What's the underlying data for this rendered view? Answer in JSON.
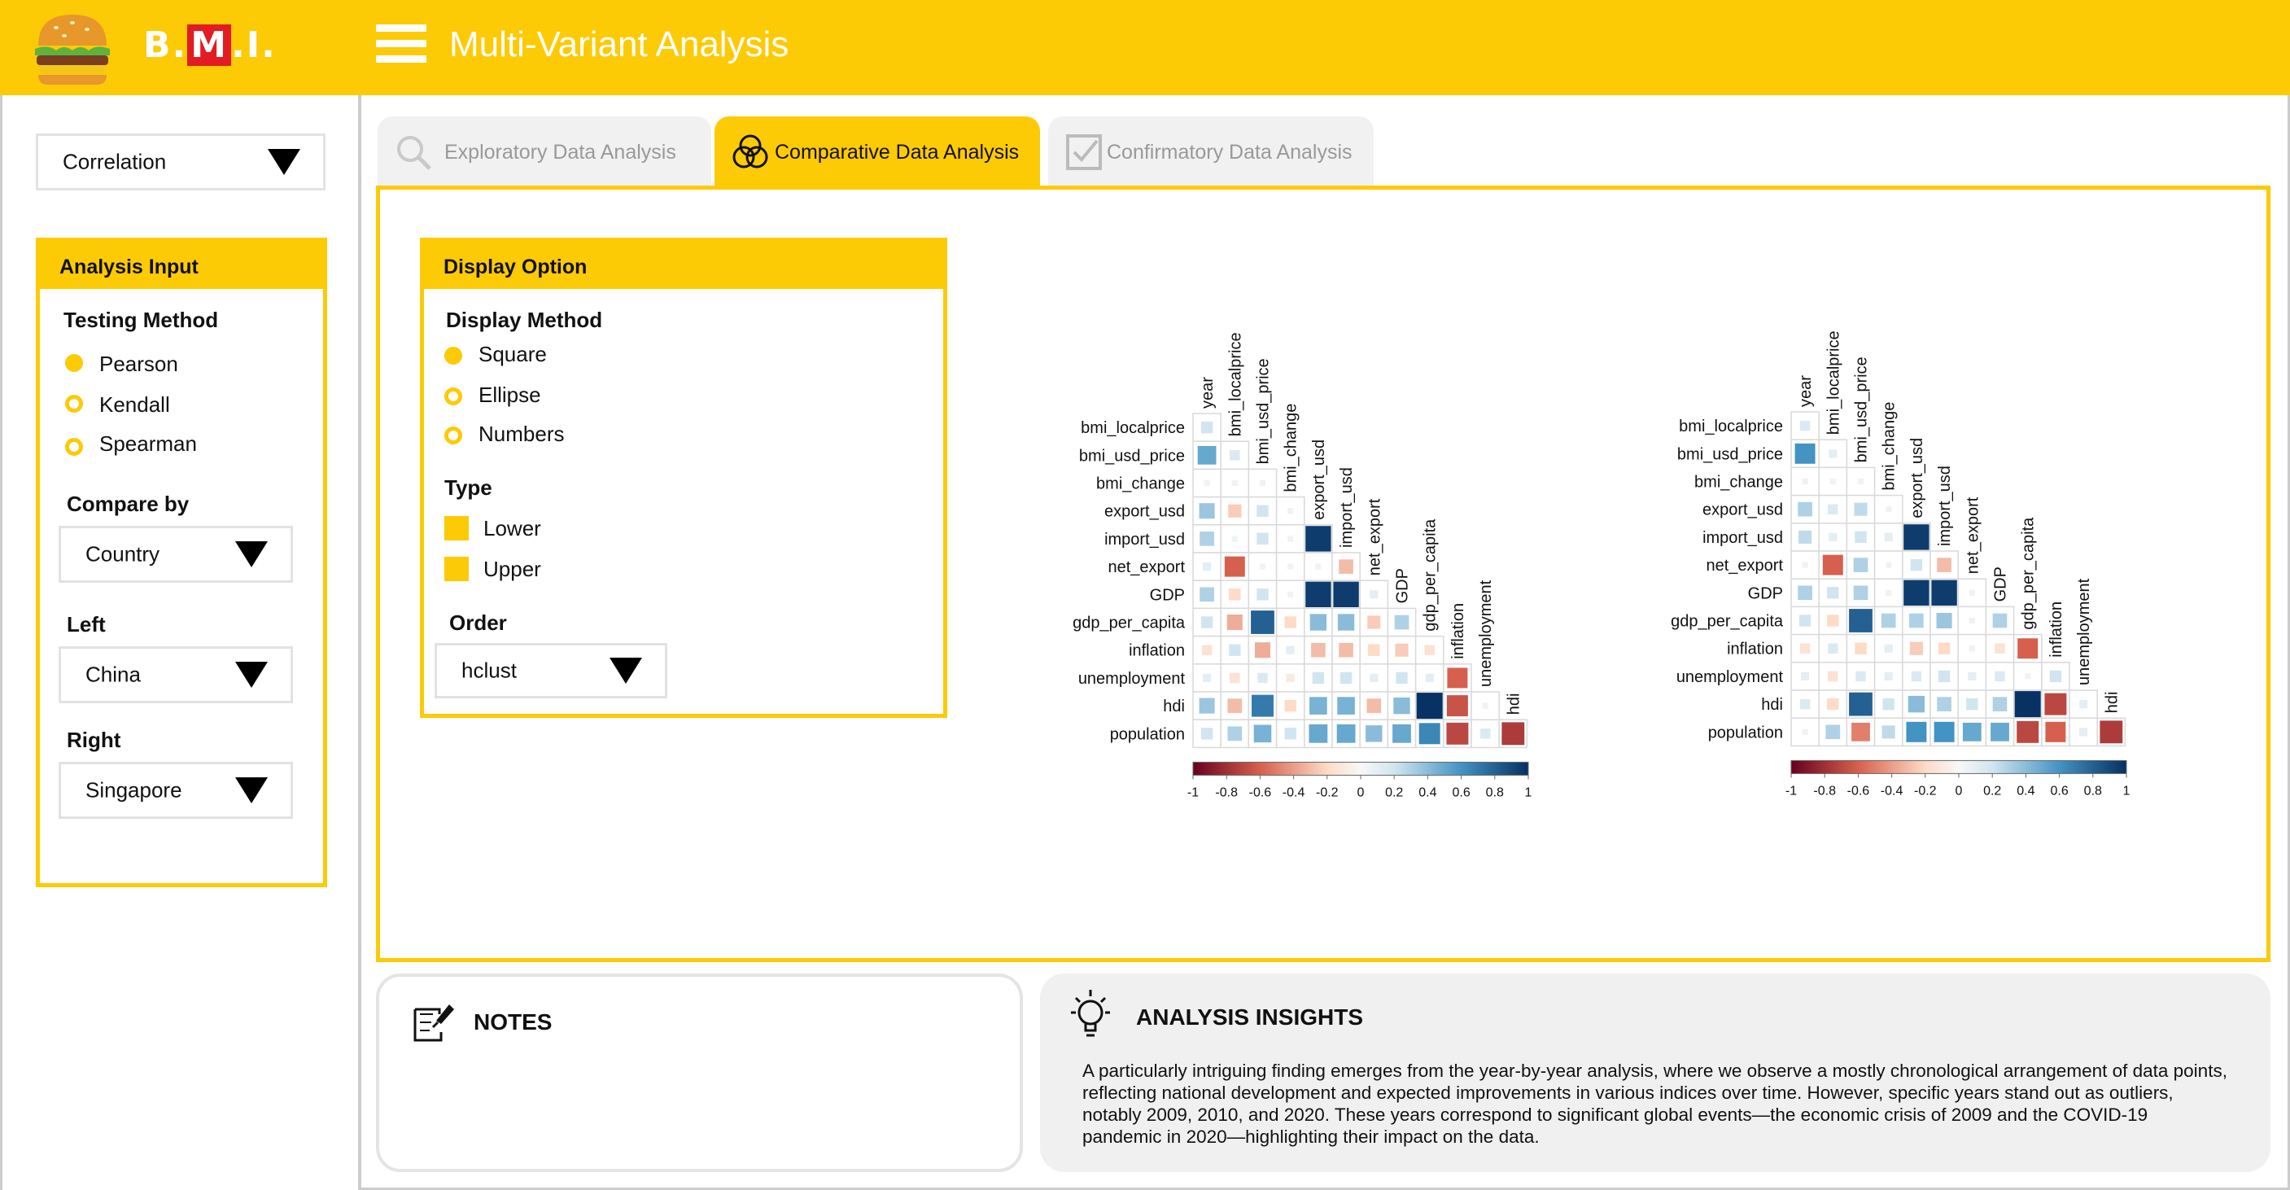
{
  "app": {
    "logo_text_prefix": "B.",
    "logo_text_m": "M",
    "logo_text_suffix": ".I.",
    "page_title": "Multi-Variant Analysis",
    "accent_color": "#FDCA06"
  },
  "sidebar": {
    "analysis_select": "Correlation",
    "panel_title": "Analysis Input",
    "testing_method_label": "Testing Method",
    "methods": [
      "Pearson",
      "Kendall",
      "Spearman"
    ],
    "selected_method": "Pearson",
    "compare_by_label": "Compare by",
    "compare_by_value": "Country",
    "left_label": "Left",
    "left_value": "China",
    "right_label": "Right",
    "right_value": "Singapore"
  },
  "tabs": [
    {
      "label": "Exploratory Data Analysis",
      "icon": "search-icon",
      "active": false
    },
    {
      "label": "Comparative Data Analysis",
      "icon": "venn-icon",
      "active": true
    },
    {
      "label": "Confirmatory Data Analysis",
      "icon": "checkbox-icon",
      "active": false
    }
  ],
  "display_option": {
    "title": "Display Option",
    "display_method_label": "Display Method",
    "methods": [
      "Square",
      "Ellipse",
      "Numbers"
    ],
    "selected_method": "Square",
    "type_label": "Type",
    "types": [
      "Lower",
      "Upper"
    ],
    "order_label": "Order",
    "order_value": "hclust"
  },
  "chart_data": [
    {
      "type": "heatmap",
      "title": "",
      "variables": [
        "year",
        "bmi_localprice",
        "bmi_usd_price",
        "bmi_change",
        "export_usd",
        "import_usd",
        "net_export",
        "GDP",
        "gdp_per_capita",
        "inflation",
        "unemployment",
        "hdi",
        "population"
      ],
      "row_labels": [
        "bmi_localprice",
        "bmi_usd_price",
        "bmi_change",
        "export_usd",
        "import_usd",
        "net_export",
        "GDP",
        "gdp_per_capita",
        "inflation",
        "unemployment",
        "hdi",
        "population"
      ],
      "col_labels": [
        "year",
        "bmi_localprice",
        "bmi_usd_price",
        "bmi_change",
        "export_usd",
        "import_usd",
        "net_export",
        "GDP",
        "gdp_per_capita",
        "inflation",
        "unemployment",
        "hdi"
      ],
      "lower_triangle_values": [
        [
          0.2
        ],
        [
          0.5,
          0.15
        ],
        [
          0.05,
          0.05,
          0.05
        ],
        [
          0.35,
          -0.25,
          0.2,
          0.05
        ],
        [
          0.3,
          0.05,
          0.2,
          0.05,
          0.95
        ],
        [
          0.1,
          -0.6,
          0.05,
          0.05,
          0.05,
          -0.3
        ],
        [
          0.3,
          -0.2,
          0.2,
          0.05,
          0.95,
          0.95,
          0.1
        ],
        [
          0.2,
          -0.35,
          0.8,
          -0.2,
          0.4,
          0.4,
          -0.25,
          0.3
        ],
        [
          -0.15,
          0.2,
          -0.35,
          0.1,
          -0.3,
          -0.3,
          -0.2,
          -0.25,
          -0.15
        ],
        [
          0.1,
          -0.15,
          0.15,
          -0.1,
          0.2,
          0.2,
          0.1,
          0.2,
          0.1,
          -0.6
        ],
        [
          0.35,
          -0.3,
          0.7,
          -0.2,
          0.45,
          0.45,
          -0.3,
          0.4,
          0.99,
          -0.65,
          0.05
        ],
        [
          0.2,
          0.3,
          0.45,
          0.2,
          0.5,
          0.5,
          0.4,
          0.5,
          0.65,
          -0.7,
          0.15,
          -0.75
        ]
      ],
      "legend_ticks": [
        "-1",
        "-0.8",
        "-0.6",
        "-0.4",
        "-0.2",
        "0",
        "0.2",
        "0.4",
        "0.6",
        "0.8",
        "1"
      ],
      "zlim": [
        -1,
        1
      ]
    },
    {
      "type": "heatmap",
      "title": "",
      "variables": [
        "year",
        "bmi_localprice",
        "bmi_usd_price",
        "bmi_change",
        "export_usd",
        "import_usd",
        "net_export",
        "GDP",
        "gdp_per_capita",
        "inflation",
        "unemployment",
        "hdi",
        "population"
      ],
      "row_labels": [
        "bmi_localprice",
        "bmi_usd_price",
        "bmi_change",
        "export_usd",
        "import_usd",
        "net_export",
        "GDP",
        "gdp_per_capita",
        "inflation",
        "unemployment",
        "hdi",
        "population"
      ],
      "col_labels": [
        "year",
        "bmi_localprice",
        "bmi_usd_price",
        "bmi_change",
        "export_usd",
        "import_usd",
        "net_export",
        "GDP",
        "gdp_per_capita",
        "inflation",
        "unemployment",
        "hdi"
      ],
      "lower_triangle_values": [
        [
          0.15
        ],
        [
          0.6,
          0.1
        ],
        [
          0.05,
          0.05,
          0.05
        ],
        [
          0.3,
          0.15,
          0.25,
          0.05
        ],
        [
          0.25,
          0.1,
          0.2,
          0.1,
          0.95
        ],
        [
          0.05,
          -0.6,
          0.3,
          0.05,
          0.2,
          -0.3
        ],
        [
          0.3,
          0.2,
          0.3,
          0.05,
          0.95,
          0.95,
          0.05
        ],
        [
          0.2,
          -0.2,
          0.8,
          0.3,
          0.3,
          0.35,
          0.05,
          0.3
        ],
        [
          -0.15,
          0.15,
          -0.2,
          0.1,
          -0.25,
          -0.2,
          0.05,
          -0.15,
          -0.6
        ],
        [
          0.1,
          -0.15,
          0.15,
          0.1,
          0.15,
          0.2,
          0.1,
          0.15,
          0.05,
          0.2
        ],
        [
          0.15,
          -0.2,
          0.8,
          0.2,
          0.4,
          0.3,
          0.2,
          0.3,
          0.99,
          -0.7,
          0.1
        ],
        [
          0.05,
          0.3,
          -0.5,
          0.25,
          0.6,
          0.6,
          0.5,
          0.5,
          -0.7,
          -0.6,
          0.1,
          -0.75
        ]
      ],
      "legend_ticks": [
        "-1",
        "-0.8",
        "-0.6",
        "-0.4",
        "-0.2",
        "0",
        "0.2",
        "0.4",
        "0.6",
        "0.8",
        "1"
      ],
      "zlim": [
        -1,
        1
      ]
    }
  ],
  "notes": {
    "title": "NOTES"
  },
  "insights": {
    "title": "ANALYSIS INSIGHTS",
    "text": "A particularly intriguing finding emerges from the year-by-year analysis, where we observe a mostly chronological arrangement of data points, reflecting national development and expected improvements in various indices over time. However, specific years stand out as outliers, notably 2009, 2010, and 2020. These years correspond to significant global events—the economic crisis of 2009 and the COVID-19 pandemic in 2020—highlighting their impact on the data."
  }
}
